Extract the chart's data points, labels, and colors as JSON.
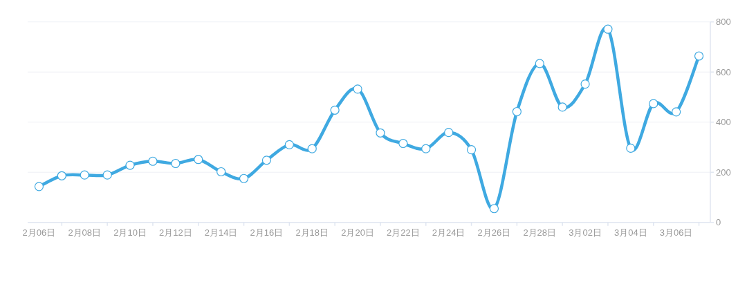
{
  "chart_data": {
    "type": "line",
    "categories": [
      "2月06日",
      null,
      "2月08日",
      null,
      "2月10日",
      null,
      "2月12日",
      null,
      "2月14日",
      null,
      "2月16日",
      null,
      "2月18日",
      null,
      "2月20日",
      null,
      "2月22日",
      null,
      "2月24日",
      null,
      "2月26日",
      null,
      "2月28日",
      null,
      "3月02日",
      null,
      "3月04日",
      null,
      "3月06日",
      null
    ],
    "series": [
      {
        "color": "#3fa9e1",
        "values": [
          143,
          186,
          189,
          189,
          228,
          244,
          235,
          251,
          202,
          175,
          248,
          310,
          294,
          448,
          532,
          357,
          315,
          294,
          359,
          290,
          55,
          442,
          634,
          460,
          552,
          771,
          296,
          474,
          441,
          664
        ]
      }
    ],
    "ylim": [
      0,
      800
    ],
    "yticks": [
      0,
      200,
      400,
      600,
      800
    ],
    "grid": "y",
    "marker": "circle",
    "line_style": "solid"
  }
}
